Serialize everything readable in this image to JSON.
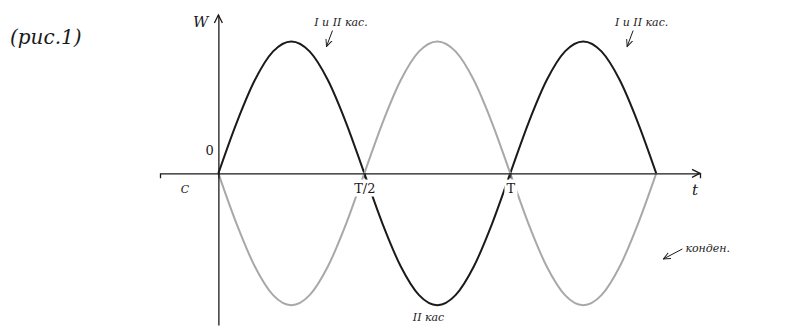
{
  "chart_data": {
    "type": "line",
    "title": "(рис.1)",
    "x_label": "t",
    "y_label": "W",
    "x": [
      0,
      0.0625,
      0.125,
      0.1875,
      0.25,
      0.3125,
      0.375,
      0.4375,
      0.5,
      0.5625,
      0.625,
      0.6875,
      0.75,
      0.8125,
      0.875,
      0.9375,
      1,
      1.0625,
      1.125,
      1.1875,
      1.25,
      1.3125,
      1.375,
      1.4375,
      1.5
    ],
    "series": [
      {
        "color": "#1a1a1a",
        "values": [
          0,
          0.383,
          0.707,
          0.924,
          1,
          0.924,
          0.707,
          0.383,
          0,
          -0.383,
          -0.707,
          -0.924,
          -1,
          -0.924,
          -0.707,
          -0.383,
          0,
          0.383,
          0.707,
          0.924,
          1,
          0.924,
          0.707,
          0.383,
          0
        ]
      },
      {
        "color": "#a8a8a8",
        "values": [
          0,
          -0.383,
          -0.707,
          -0.924,
          -1,
          -0.924,
          -0.707,
          -0.383,
          0,
          0.383,
          0.707,
          0.924,
          1,
          0.924,
          0.707,
          0.383,
          0,
          -0.383,
          -0.707,
          -0.924,
          -1,
          -0.924,
          -0.707,
          -0.383,
          0
        ]
      }
    ],
    "xlim": [
      -0.2,
      1.65
    ],
    "ylim": [
      -1.15,
      1.2
    ],
    "xticks": [
      0,
      {
        "value": 0.5,
        "label": "T/2"
      },
      {
        "value": 1,
        "label": "T"
      }
    ],
    "tick_labels": "x",
    "annotations": [
      {
        "text": "I и II кас.",
        "x": 0.42,
        "y": 1.12
      },
      {
        "text": "I и II кас.",
        "x": 1.45,
        "y": 1.12
      },
      {
        "text": "II кас",
        "x": 0.72,
        "y": -1.12
      },
      {
        "text": "конден.",
        "x": 1.6,
        "y": -0.6
      },
      {
        "text": "C",
        "x": -0.1,
        "y": -0.15
      }
    ]
  }
}
